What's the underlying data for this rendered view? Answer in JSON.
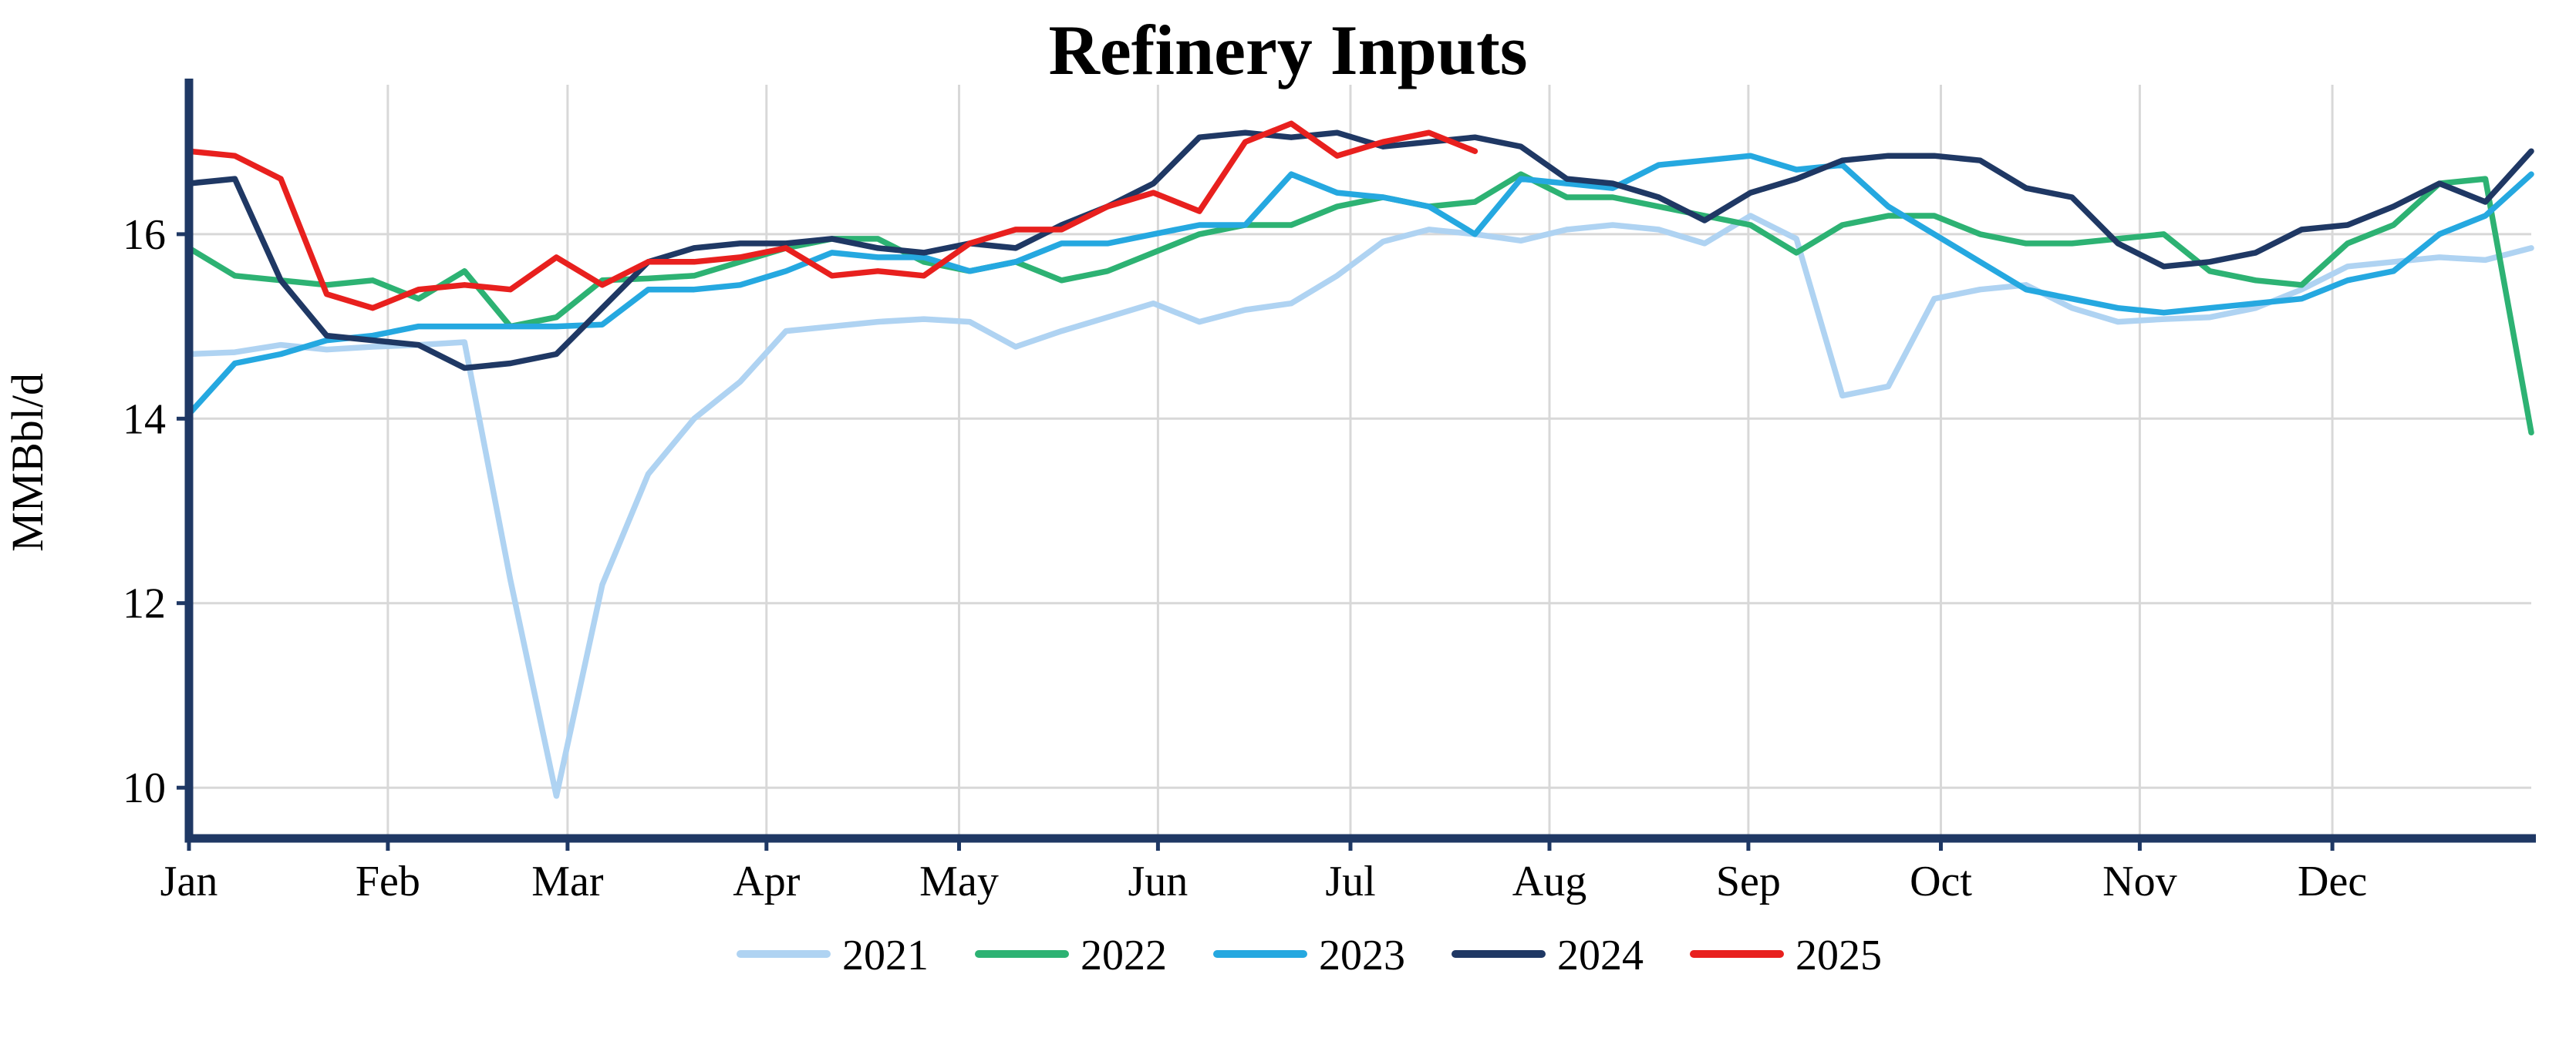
{
  "title": "Refinery Inputs",
  "ylabel": "MMBbl/d",
  "chart_data": {
    "type": "line",
    "title": "Refinery Inputs",
    "ylabel": "MMBbl/d",
    "x_tick_labels": [
      "Jan",
      "Feb",
      "Mar",
      "Apr",
      "May",
      "Jun",
      "Jul",
      "Aug",
      "Sep",
      "Oct",
      "Nov",
      "Dec"
    ],
    "yticks": [
      10,
      12,
      14,
      16
    ],
    "ylim": [
      9.45,
      17.62
    ],
    "x_unit": "week of year",
    "weeks_per_year": 52,
    "grid": true,
    "legend_position": "bottom",
    "axis_color": "#1F3864",
    "grid_color": "#D8D8D8",
    "series": [
      {
        "name": "2021",
        "color": "#AFD3F2",
        "values": [
          14.7,
          14.72,
          14.8,
          14.75,
          14.78,
          14.8,
          14.83,
          12.25,
          9.91,
          12.2,
          13.4,
          14.0,
          14.4,
          14.95,
          15.0,
          15.05,
          15.08,
          15.05,
          14.78,
          14.95,
          15.1,
          15.25,
          15.05,
          15.18,
          15.25,
          15.55,
          15.92,
          16.05,
          16.0,
          15.93,
          16.05,
          16.1,
          16.05,
          15.9,
          16.2,
          15.95,
          14.25,
          14.35,
          15.3,
          15.4,
          15.45,
          15.2,
          15.05,
          15.08,
          15.1,
          15.2,
          15.4,
          15.65,
          15.7,
          15.75,
          15.72,
          15.85
        ]
      },
      {
        "name": "2022",
        "color": "#2DB273",
        "values": [
          15.85,
          15.55,
          15.5,
          15.45,
          15.5,
          15.3,
          15.6,
          15.0,
          15.1,
          15.5,
          15.52,
          15.55,
          15.7,
          15.85,
          15.95,
          15.95,
          15.7,
          15.6,
          15.7,
          15.5,
          15.6,
          15.8,
          16.0,
          16.1,
          16.1,
          16.3,
          16.4,
          16.3,
          16.35,
          16.65,
          16.4,
          16.4,
          16.3,
          16.2,
          16.1,
          15.8,
          16.1,
          16.2,
          16.2,
          16.0,
          15.9,
          15.9,
          15.95,
          16.0,
          15.6,
          15.5,
          15.45,
          15.9,
          16.1,
          16.55,
          16.6,
          13.85
        ]
      },
      {
        "name": "2023",
        "color": "#25A8E0",
        "values": [
          14.05,
          14.6,
          14.7,
          14.85,
          14.9,
          15.0,
          15.0,
          15.0,
          15.0,
          15.02,
          15.4,
          15.4,
          15.45,
          15.6,
          15.8,
          15.75,
          15.75,
          15.6,
          15.7,
          15.9,
          15.9,
          16.0,
          16.1,
          16.1,
          16.65,
          16.45,
          16.4,
          16.3,
          16.0,
          16.6,
          16.55,
          16.5,
          16.75,
          16.8,
          16.85,
          16.7,
          16.75,
          16.3,
          16.0,
          15.7,
          15.4,
          15.3,
          15.2,
          15.15,
          15.2,
          15.25,
          15.3,
          15.5,
          15.6,
          16.0,
          16.2,
          16.65
        ]
      },
      {
        "name": "2024",
        "color": "#1F3864",
        "values": [
          16.55,
          16.6,
          15.5,
          14.9,
          14.85,
          14.8,
          14.55,
          14.6,
          14.7,
          15.2,
          15.7,
          15.85,
          15.9,
          15.9,
          15.95,
          15.85,
          15.8,
          15.9,
          15.85,
          16.1,
          16.3,
          16.55,
          17.05,
          17.1,
          17.05,
          17.1,
          16.95,
          17.0,
          17.05,
          16.95,
          16.6,
          16.55,
          16.4,
          16.15,
          16.45,
          16.6,
          16.8,
          16.85,
          16.85,
          16.8,
          16.5,
          16.4,
          15.9,
          15.65,
          15.7,
          15.8,
          16.05,
          16.1,
          16.3,
          16.55,
          16.35,
          16.9
        ]
      },
      {
        "name": "2025",
        "color": "#E8201E",
        "values": [
          16.9,
          16.85,
          16.6,
          15.35,
          15.2,
          15.4,
          15.45,
          15.4,
          15.75,
          15.45,
          15.7,
          15.7,
          15.75,
          15.85,
          15.55,
          15.6,
          15.55,
          15.9,
          16.05,
          16.05,
          16.3,
          16.45,
          16.25,
          17.0,
          17.2,
          16.85,
          17.0,
          17.1,
          16.9
        ]
      }
    ]
  }
}
